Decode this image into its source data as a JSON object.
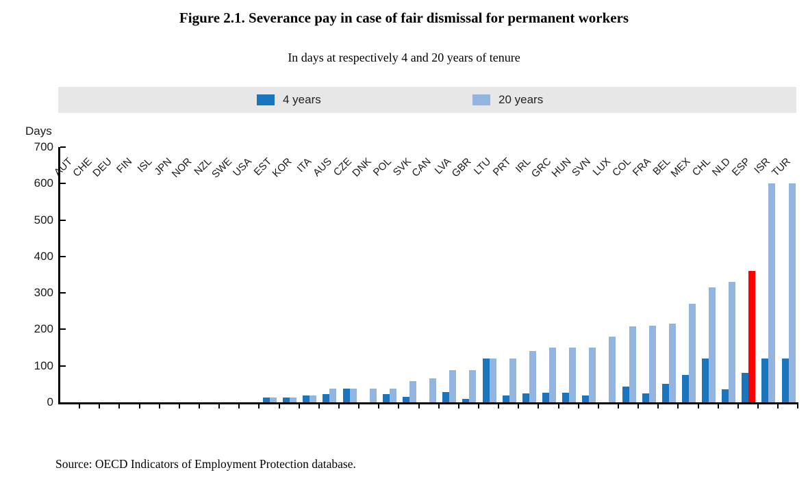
{
  "figure": {
    "title": "Figure 2.1. Severance pay in case of fair dismissal for permanent workers",
    "subtitle": "In days at respectively 4 and 20 years of tenure",
    "source": "Source: OECD Indicators of Employment Protection database."
  },
  "legend": {
    "items": [
      {
        "label": "4 years",
        "color": "#1b75bc"
      },
      {
        "label": "20 years",
        "color": "#92b4de"
      }
    ]
  },
  "colors": {
    "series_4y": "#1b75bc",
    "series_20y": "#92b4de",
    "highlight_red": "#fe0000",
    "legend_band": "#e7e7e7",
    "axis": "#000000"
  },
  "chart_data": {
    "type": "bar",
    "title": "Figure 2.1. Severance pay in case of fair dismissal for permanent workers",
    "subtitle": "In days at respectively 4 and 20 years of tenure",
    "xlabel": "",
    "ylabel": "Days",
    "ylim": [
      0,
      700
    ],
    "yticks": [
      0,
      100,
      200,
      300,
      400,
      500,
      600,
      700
    ],
    "grid": false,
    "legend_position": "top",
    "categories": [
      "AUT",
      "CHE",
      "DEU",
      "FIN",
      "ISL",
      "JPN",
      "NOR",
      "NZL",
      "SWE",
      "USA",
      "EST",
      "KOR",
      "ITA",
      "AUS",
      "CZE",
      "DNK",
      "POL",
      "SVK",
      "CAN",
      "LVA",
      "GBR",
      "LTU",
      "PRT",
      "IRL",
      "GRC",
      "HUN",
      "SVN",
      "LUX",
      "COL",
      "FRA",
      "BEL",
      "MEX",
      "CHL",
      "NLD",
      "ESP",
      "ISR",
      "TUR"
    ],
    "series": [
      {
        "name": "4 years",
        "color": "#1b75bc",
        "values": [
          0,
          0,
          0,
          0,
          0,
          0,
          0,
          0,
          0,
          0,
          13,
          13,
          18,
          22,
          38,
          0,
          22,
          15,
          0,
          28,
          10,
          120,
          18,
          25,
          27,
          27,
          18,
          0,
          43,
          25,
          50,
          75,
          120,
          35,
          80,
          120,
          120
        ]
      },
      {
        "name": "20 years",
        "color": "#92b4de",
        "values": [
          0,
          0,
          0,
          0,
          0,
          0,
          0,
          0,
          0,
          0,
          13,
          13,
          18,
          38,
          38,
          38,
          38,
          58,
          65,
          88,
          88,
          120,
          120,
          140,
          150,
          150,
          150,
          180,
          208,
          210,
          215,
          270,
          315,
          330,
          360,
          600,
          600
        ]
      }
    ],
    "highlight": {
      "category": "ESP",
      "series": "20 years",
      "color": "#fe0000"
    }
  }
}
